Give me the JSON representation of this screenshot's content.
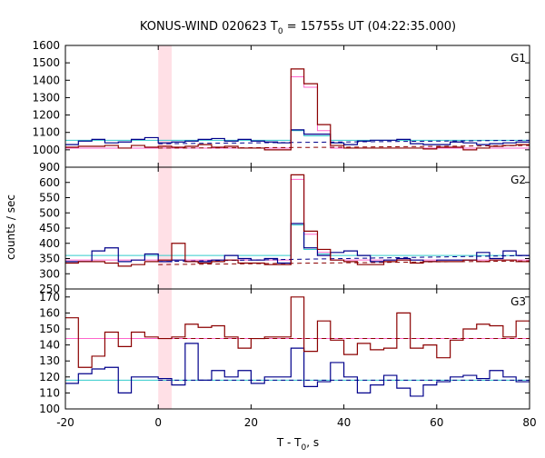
{
  "chart_data": {
    "type": "line",
    "title_prefix": "KONUS-WIND 020623 T",
    "title_sub": "0",
    "title_suffix": " = 15755s UT (04:22:35.000)",
    "xlabel_prefix": "T - T",
    "xlabel_sub": "0",
    "xlabel_suffix": ", s",
    "ylabel": "counts / sec",
    "xlim": [
      -20,
      80
    ],
    "xticks": [
      -20,
      0,
      20,
      40,
      60,
      80
    ],
    "shaded_interval": [
      0,
      2.9
    ],
    "step_edges": [
      -20.0,
      -17.2,
      -14.3,
      -11.5,
      -8.6,
      -5.8,
      -2.9,
      0.0,
      2.9,
      5.8,
      8.6,
      11.5,
      14.3,
      17.2,
      20.0,
      22.9,
      25.7,
      28.6,
      31.4,
      34.3,
      37.1,
      40.0,
      42.9,
      45.7,
      48.6,
      51.4,
      54.3,
      57.1,
      60.0,
      62.9,
      65.7,
      68.6,
      71.4,
      74.3,
      77.1,
      80.0
    ],
    "colors": {
      "series_a": "#8b0000",
      "series_b": "#00008b",
      "fit_a": "#ff66cc",
      "fit_b": "#33cccc",
      "shade": "#ffe0e6"
    },
    "panels": [
      {
        "label": "G1",
        "ylim": [
          900,
          1600
        ],
        "yticks": [
          900,
          1000,
          1100,
          1200,
          1300,
          1400,
          1500,
          1600
        ],
        "series_a": [
          1015,
          1020,
          1020,
          1025,
          1010,
          1025,
          1015,
          1020,
          1015,
          1020,
          1030,
          1015,
          1020,
          1010,
          1010,
          1000,
          1000,
          1465,
          1380,
          1145,
          1025,
          1010,
          1010,
          1010,
          1010,
          1010,
          1010,
          1005,
          1015,
          1015,
          1000,
          1010,
          1020,
          1025,
          1030
        ],
        "series_b": [
          1030,
          1050,
          1060,
          1040,
          1045,
          1060,
          1070,
          1040,
          1045,
          1050,
          1060,
          1065,
          1050,
          1060,
          1050,
          1045,
          1040,
          1115,
          1090,
          1090,
          1040,
          1030,
          1050,
          1055,
          1055,
          1060,
          1035,
          1030,
          1030,
          1045,
          1040,
          1030,
          1035,
          1040,
          1045
        ],
        "fit_a": [
          1010,
          1010,
          1010,
          1010,
          1010,
          1010,
          1010,
          1010,
          1010,
          1010,
          1010,
          1010,
          1010,
          1010,
          1010,
          1010,
          1010,
          1420,
          1360,
          1110,
          1010,
          1010,
          1010,
          1010,
          1010,
          1010,
          1010,
          1010,
          1010,
          1010,
          1010,
          1010,
          1010,
          1010,
          1010
        ],
        "fit_b": [
          1055,
          1055,
          1055,
          1055,
          1055,
          1055,
          1055,
          1055,
          1055,
          1055,
          1055,
          1055,
          1055,
          1055,
          1055,
          1055,
          1055,
          1110,
          1080,
          1080,
          1055,
          1055,
          1055,
          1055,
          1055,
          1055,
          1055,
          1055,
          1055,
          1055,
          1055,
          1055,
          1055,
          1055,
          1055
        ],
        "bg_a": [
          1010,
          1012,
          1015,
          1020,
          1025
        ],
        "bg_b": [
          1035,
          1040,
          1045,
          1050,
          1055
        ]
      },
      {
        "label": "G2",
        "ylim": [
          250,
          650
        ],
        "yticks": [
          250,
          300,
          350,
          400,
          450,
          500,
          550,
          600
        ],
        "series_a": [
          335,
          340,
          340,
          335,
          325,
          330,
          340,
          345,
          400,
          340,
          335,
          340,
          345,
          335,
          335,
          330,
          330,
          625,
          440,
          380,
          345,
          340,
          330,
          330,
          340,
          345,
          335,
          340,
          340,
          340,
          345,
          340,
          345,
          345,
          340
        ],
        "series_b": [
          340,
          340,
          375,
          385,
          340,
          345,
          365,
          340,
          345,
          340,
          340,
          345,
          360,
          350,
          345,
          350,
          335,
          465,
          385,
          360,
          370,
          375,
          360,
          340,
          345,
          350,
          345,
          340,
          345,
          345,
          345,
          370,
          350,
          375,
          360
        ],
        "fit_a": [
          345,
          345,
          345,
          345,
          345,
          345,
          345,
          345,
          345,
          345,
          345,
          345,
          345,
          345,
          345,
          345,
          345,
          610,
          430,
          370,
          345,
          345,
          345,
          345,
          345,
          345,
          345,
          345,
          345,
          345,
          345,
          345,
          345,
          345,
          345
        ],
        "fit_b": [
          360,
          360,
          360,
          360,
          360,
          360,
          360,
          360,
          360,
          360,
          360,
          360,
          360,
          360,
          360,
          360,
          360,
          460,
          380,
          365,
          360,
          360,
          360,
          360,
          360,
          360,
          360,
          360,
          360,
          360,
          360,
          360,
          360,
          360,
          360
        ],
        "bg_a": [
          330,
          333,
          336,
          339,
          342
        ],
        "bg_b": [
          340,
          345,
          350,
          355,
          360
        ]
      },
      {
        "label": "G3",
        "ylim": [
          100,
          175
        ],
        "yticks": [
          100,
          110,
          120,
          130,
          140,
          150,
          160,
          170
        ],
        "series_a": [
          157,
          126,
          133,
          148,
          139,
          148,
          145,
          144,
          145,
          153,
          151,
          152,
          145,
          138,
          144,
          145,
          145,
          170,
          136,
          155,
          143,
          134,
          141,
          137,
          138,
          160,
          138,
          140,
          132,
          143,
          150,
          153,
          152,
          145,
          155
        ],
        "series_b": [
          116,
          122,
          125,
          126,
          110,
          120,
          120,
          119,
          115,
          141,
          118,
          124,
          120,
          124,
          116,
          120,
          120,
          138,
          114,
          117,
          129,
          120,
          110,
          115,
          121,
          113,
          108,
          115,
          117,
          120,
          121,
          119,
          124,
          120,
          117
        ],
        "fit_a": [
          144,
          144,
          144,
          144,
          144,
          144,
          144,
          144,
          144,
          144,
          144,
          144,
          144,
          144,
          144,
          144,
          144,
          144,
          144,
          144,
          144,
          144,
          144,
          144,
          144,
          144,
          144,
          144,
          144,
          144,
          144,
          144,
          144,
          144,
          144
        ],
        "fit_b": [
          118,
          118,
          118,
          118,
          118,
          118,
          118,
          118,
          118,
          118,
          118,
          118,
          118,
          118,
          118,
          118,
          118,
          118,
          118,
          118,
          118,
          118,
          118,
          118,
          118,
          118,
          118,
          118,
          118,
          118,
          118,
          118,
          118,
          118,
          118
        ],
        "bg_a": [
          144,
          144,
          144,
          144,
          144
        ],
        "bg_b": [
          118,
          118,
          118,
          118,
          118
        ]
      }
    ]
  }
}
